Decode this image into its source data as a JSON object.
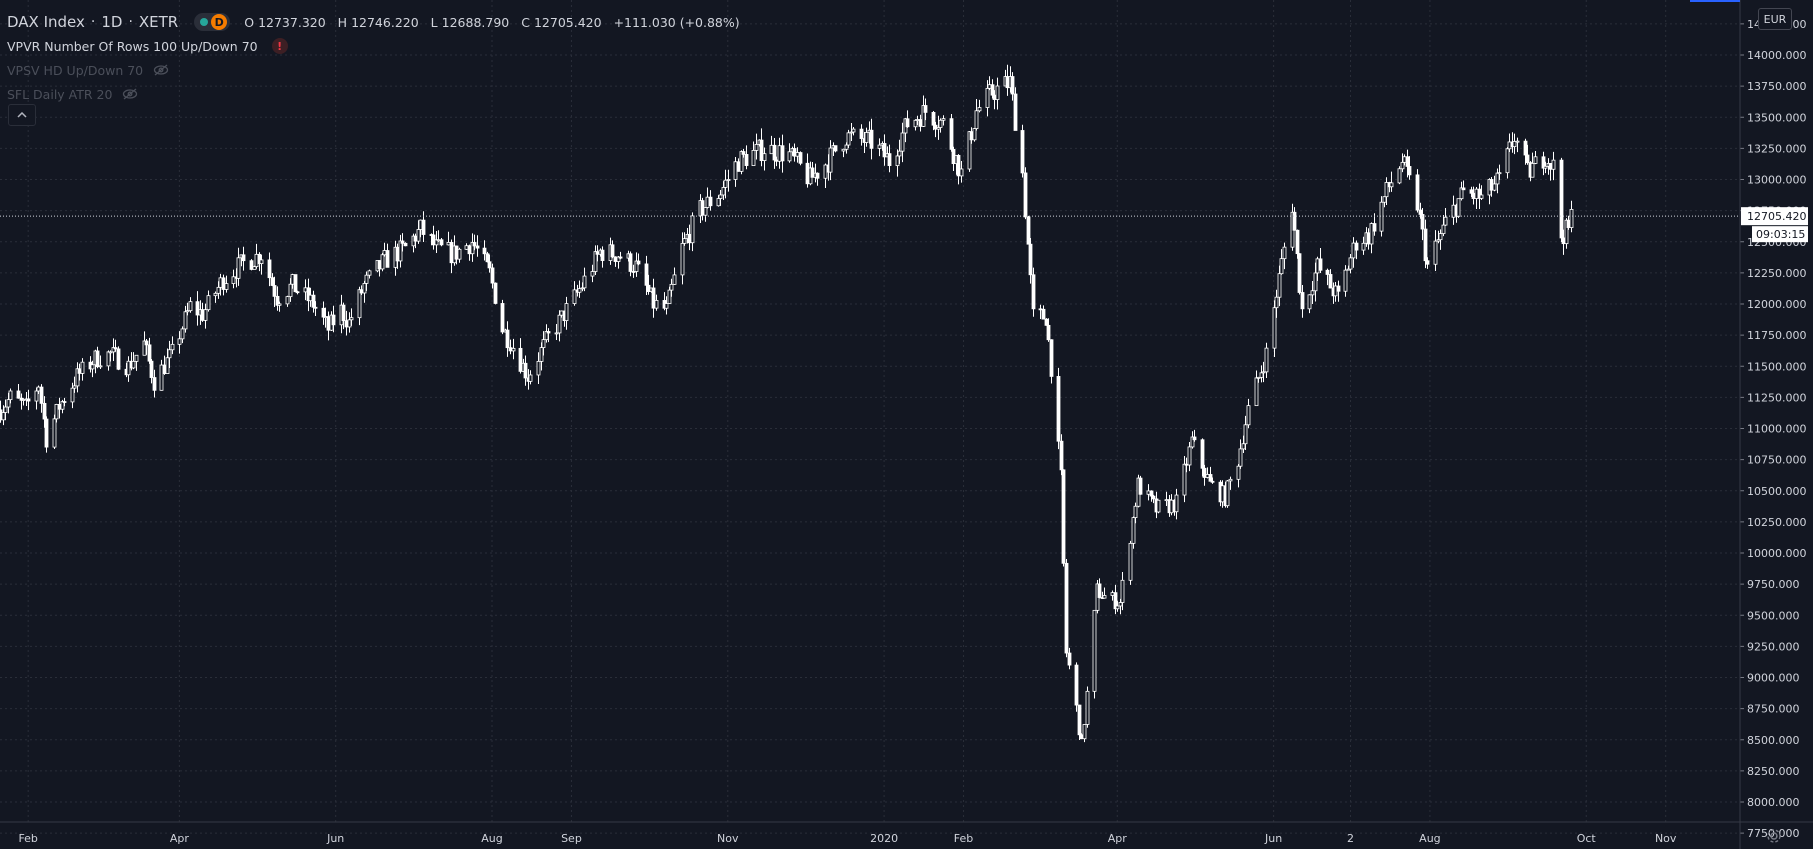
{
  "header": {
    "symbol": "DAX Index",
    "interval": "1D",
    "exchange": "XETR",
    "session_badge": "D",
    "open_label": "O",
    "open": "12737.320",
    "high_label": "H",
    "high": "12746.220",
    "low_label": "L",
    "low": "12688.790",
    "close_label": "C",
    "close": "12705.420",
    "change": "+111.030 (+0.88%)"
  },
  "indicators": [
    {
      "label": "VPVR Number Of Rows 100 Up/Down 70",
      "status": "!"
    },
    {
      "label": "VPSV HD Up/Down 70",
      "status": "hidden"
    },
    {
      "label": "SFL Daily ATR 20",
      "status": "hidden"
    }
  ],
  "currency": "EUR",
  "price_tag": {
    "value": "12705.420",
    "countdown": "09:03:15"
  },
  "colors": {
    "background": "#131722",
    "candle": "#ffffff",
    "grid": "#2a2e39",
    "axis_text": "#d1d4dc",
    "price_line": "#d1d4dc"
  },
  "icons": {
    "collapse": "chevron-up-icon",
    "settings": "gear-icon",
    "hidden": "eye-off-icon",
    "warning": "warning-icon"
  },
  "chart_data": {
    "type": "candlestick",
    "interval": "1D",
    "ylim": [
      7700,
      14300
    ],
    "y_ticks": [
      7750,
      8000,
      8250,
      8500,
      8750,
      9000,
      9250,
      9500,
      9750,
      10000,
      10250,
      10500,
      10750,
      11000,
      11250,
      11500,
      11750,
      12000,
      12250,
      12500,
      12750,
      13000,
      13250,
      13500,
      13750,
      14000,
      14250
    ],
    "y_tick_labels": [
      "7750.000",
      "8000.000",
      "8250.000",
      "8500.000",
      "8750.000",
      "9000.000",
      "9250.000",
      "9500.000",
      "9750.000",
      "10000.000",
      "10250.000",
      "10500.000",
      "10750.000",
      "11000.000",
      "11250.000",
      "11500.000",
      "11750.000",
      "12000.000",
      "12250.000",
      "12500.000",
      "12750.000",
      "13000.000",
      "13250.000",
      "13500.000",
      "13750.000",
      "14000.000",
      "14250.000"
    ],
    "x_start": "2019-01-21",
    "x_end": "2020-11-30",
    "x_ticks": [
      {
        "date": "2019-02-01",
        "label": "Feb"
      },
      {
        "date": "2019-04-01",
        "label": "Apr"
      },
      {
        "date": "2019-06-01",
        "label": "Jun"
      },
      {
        "date": "2019-08-01",
        "label": "Aug"
      },
      {
        "date": "2019-09-01",
        "label": "Sep"
      },
      {
        "date": "2019-11-01",
        "label": "Nov"
      },
      {
        "date": "2020-01-01",
        "label": "2020"
      },
      {
        "date": "2020-02-01",
        "label": "Feb"
      },
      {
        "date": "2020-04-01",
        "label": "Apr"
      },
      {
        "date": "2020-06-01",
        "label": "Jun"
      },
      {
        "date": "2020-07-01",
        "label": "2"
      },
      {
        "date": "2020-08-01",
        "label": "Aug"
      },
      {
        "date": "2020-10-01",
        "label": "Oct"
      },
      {
        "date": "2020-11-01",
        "label": "Nov"
      }
    ],
    "last_price": 12705.42,
    "price_path": [
      [
        "2019-01-21",
        11150
      ],
      [
        "2019-01-25",
        11250
      ],
      [
        "2019-01-31",
        11170
      ],
      [
        "2019-02-05",
        11360
      ],
      [
        "2019-02-08",
        10920
      ],
      [
        "2019-02-13",
        11180
      ],
      [
        "2019-02-20",
        11420
      ],
      [
        "2019-02-27",
        11560
      ],
      [
        "2019-03-05",
        11600
      ],
      [
        "2019-03-12",
        11500
      ],
      [
        "2019-03-18",
        11680
      ],
      [
        "2019-03-22",
        11380
      ],
      [
        "2019-03-29",
        11600
      ],
      [
        "2019-04-05",
        11980
      ],
      [
        "2019-04-10",
        11920
      ],
      [
        "2019-04-18",
        12200
      ],
      [
        "2019-04-26",
        12330
      ],
      [
        "2019-05-03",
        12400
      ],
      [
        "2019-05-09",
        12050
      ],
      [
        "2019-05-15",
        12150
      ],
      [
        "2019-05-23",
        12000
      ],
      [
        "2019-05-29",
        11800
      ],
      [
        "2019-06-03",
        11950
      ],
      [
        "2019-06-06",
        11850
      ],
      [
        "2019-06-12",
        12150
      ],
      [
        "2019-06-20",
        12350
      ],
      [
        "2019-06-28",
        12450
      ],
      [
        "2019-07-04",
        12600
      ],
      [
        "2019-07-10",
        12450
      ],
      [
        "2019-07-17",
        12400
      ],
      [
        "2019-07-24",
        12500
      ],
      [
        "2019-07-31",
        12250
      ],
      [
        "2019-08-05",
        11800
      ],
      [
        "2019-08-08",
        11700
      ],
      [
        "2019-08-15",
        11420
      ],
      [
        "2019-08-22",
        11700
      ],
      [
        "2019-08-30",
        11950
      ],
      [
        "2019-09-05",
        12150
      ],
      [
        "2019-09-12",
        12420
      ],
      [
        "2019-09-19",
        12400
      ],
      [
        "2019-09-26",
        12300
      ],
      [
        "2019-10-03",
        12000
      ],
      [
        "2019-10-08",
        11950
      ],
      [
        "2019-10-14",
        12450
      ],
      [
        "2019-10-21",
        12750
      ],
      [
        "2019-10-29",
        12900
      ],
      [
        "2019-11-05",
        13150
      ],
      [
        "2019-11-15",
        13250
      ],
      [
        "2019-11-25",
        13200
      ],
      [
        "2019-12-03",
        13000
      ],
      [
        "2019-12-10",
        13150
      ],
      [
        "2019-12-17",
        13350
      ],
      [
        "2019-12-27",
        13300
      ],
      [
        "2020-01-03",
        13150
      ],
      [
        "2020-01-10",
        13450
      ],
      [
        "2020-01-17",
        13550
      ],
      [
        "2020-01-24",
        13450
      ],
      [
        "2020-01-31",
        13050
      ],
      [
        "2020-02-06",
        13550
      ],
      [
        "2020-02-12",
        13700
      ],
      [
        "2020-02-19",
        13780
      ],
      [
        "2020-02-24",
        13050
      ],
      [
        "2020-02-28",
        11900
      ],
      [
        "2020-03-04",
        11900
      ],
      [
        "2020-03-06",
        11500
      ],
      [
        "2020-03-10",
        10600
      ],
      [
        "2020-03-12",
        9200
      ],
      [
        "2020-03-16",
        8750
      ],
      [
        "2020-03-18",
        8450
      ],
      [
        "2020-03-24",
        9700
      ],
      [
        "2020-03-27",
        9650
      ],
      [
        "2020-04-02",
        9600
      ],
      [
        "2020-04-09",
        10550
      ],
      [
        "2020-04-16",
        10350
      ],
      [
        "2020-04-24",
        10400
      ],
      [
        "2020-04-30",
        10900
      ],
      [
        "2020-05-07",
        10550
      ],
      [
        "2020-05-13",
        10450
      ],
      [
        "2020-05-18",
        10750
      ],
      [
        "2020-05-22",
        11150
      ],
      [
        "2020-05-29",
        11600
      ],
      [
        "2020-06-05",
        12450
      ],
      [
        "2020-06-08",
        12800
      ],
      [
        "2020-06-12",
        11950
      ],
      [
        "2020-06-18",
        12300
      ],
      [
        "2020-06-26",
        12050
      ],
      [
        "2020-07-03",
        12500
      ],
      [
        "2020-07-08",
        12550
      ],
      [
        "2020-07-15",
        12900
      ],
      [
        "2020-07-21",
        13150
      ],
      [
        "2020-07-27",
        12800
      ],
      [
        "2020-07-31",
        12300
      ],
      [
        "2020-08-07",
        12650
      ],
      [
        "2020-08-14",
        12900
      ],
      [
        "2020-08-21",
        12850
      ],
      [
        "2020-08-28",
        13000
      ],
      [
        "2020-09-03",
        13350
      ],
      [
        "2020-09-08",
        13050
      ],
      [
        "2020-09-15",
        13200
      ],
      [
        "2020-09-18",
        13100
      ],
      [
        "2020-09-21",
        12550
      ],
      [
        "2020-09-24",
        12600
      ],
      [
        "2020-09-25",
        12705
      ]
    ]
  }
}
